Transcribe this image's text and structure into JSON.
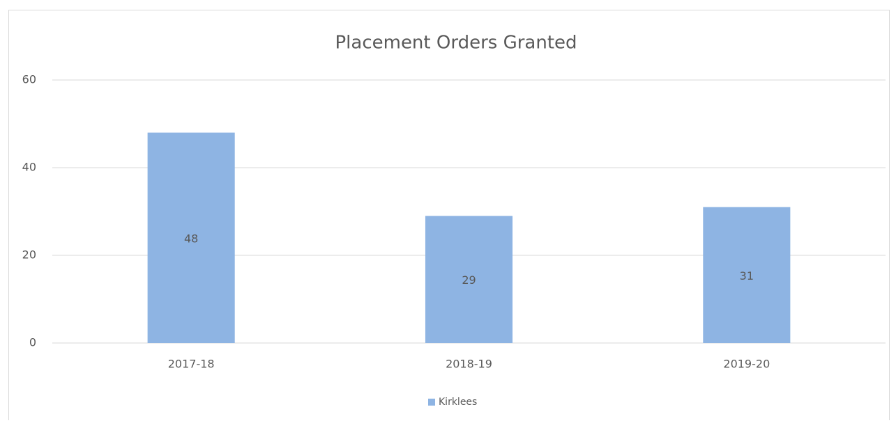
{
  "chart_data": {
    "type": "bar",
    "title": "Placement Orders Granted",
    "categories": [
      "2017-18",
      "2018-19",
      "2019-20"
    ],
    "series": [
      {
        "name": "Kirklees",
        "color": "#8eb4e3",
        "values": [
          48,
          29,
          31
        ]
      }
    ],
    "ylim": [
      0,
      60
    ],
    "yticks": [
      0,
      20,
      40,
      60
    ],
    "grid": true,
    "legend": "bottom"
  }
}
